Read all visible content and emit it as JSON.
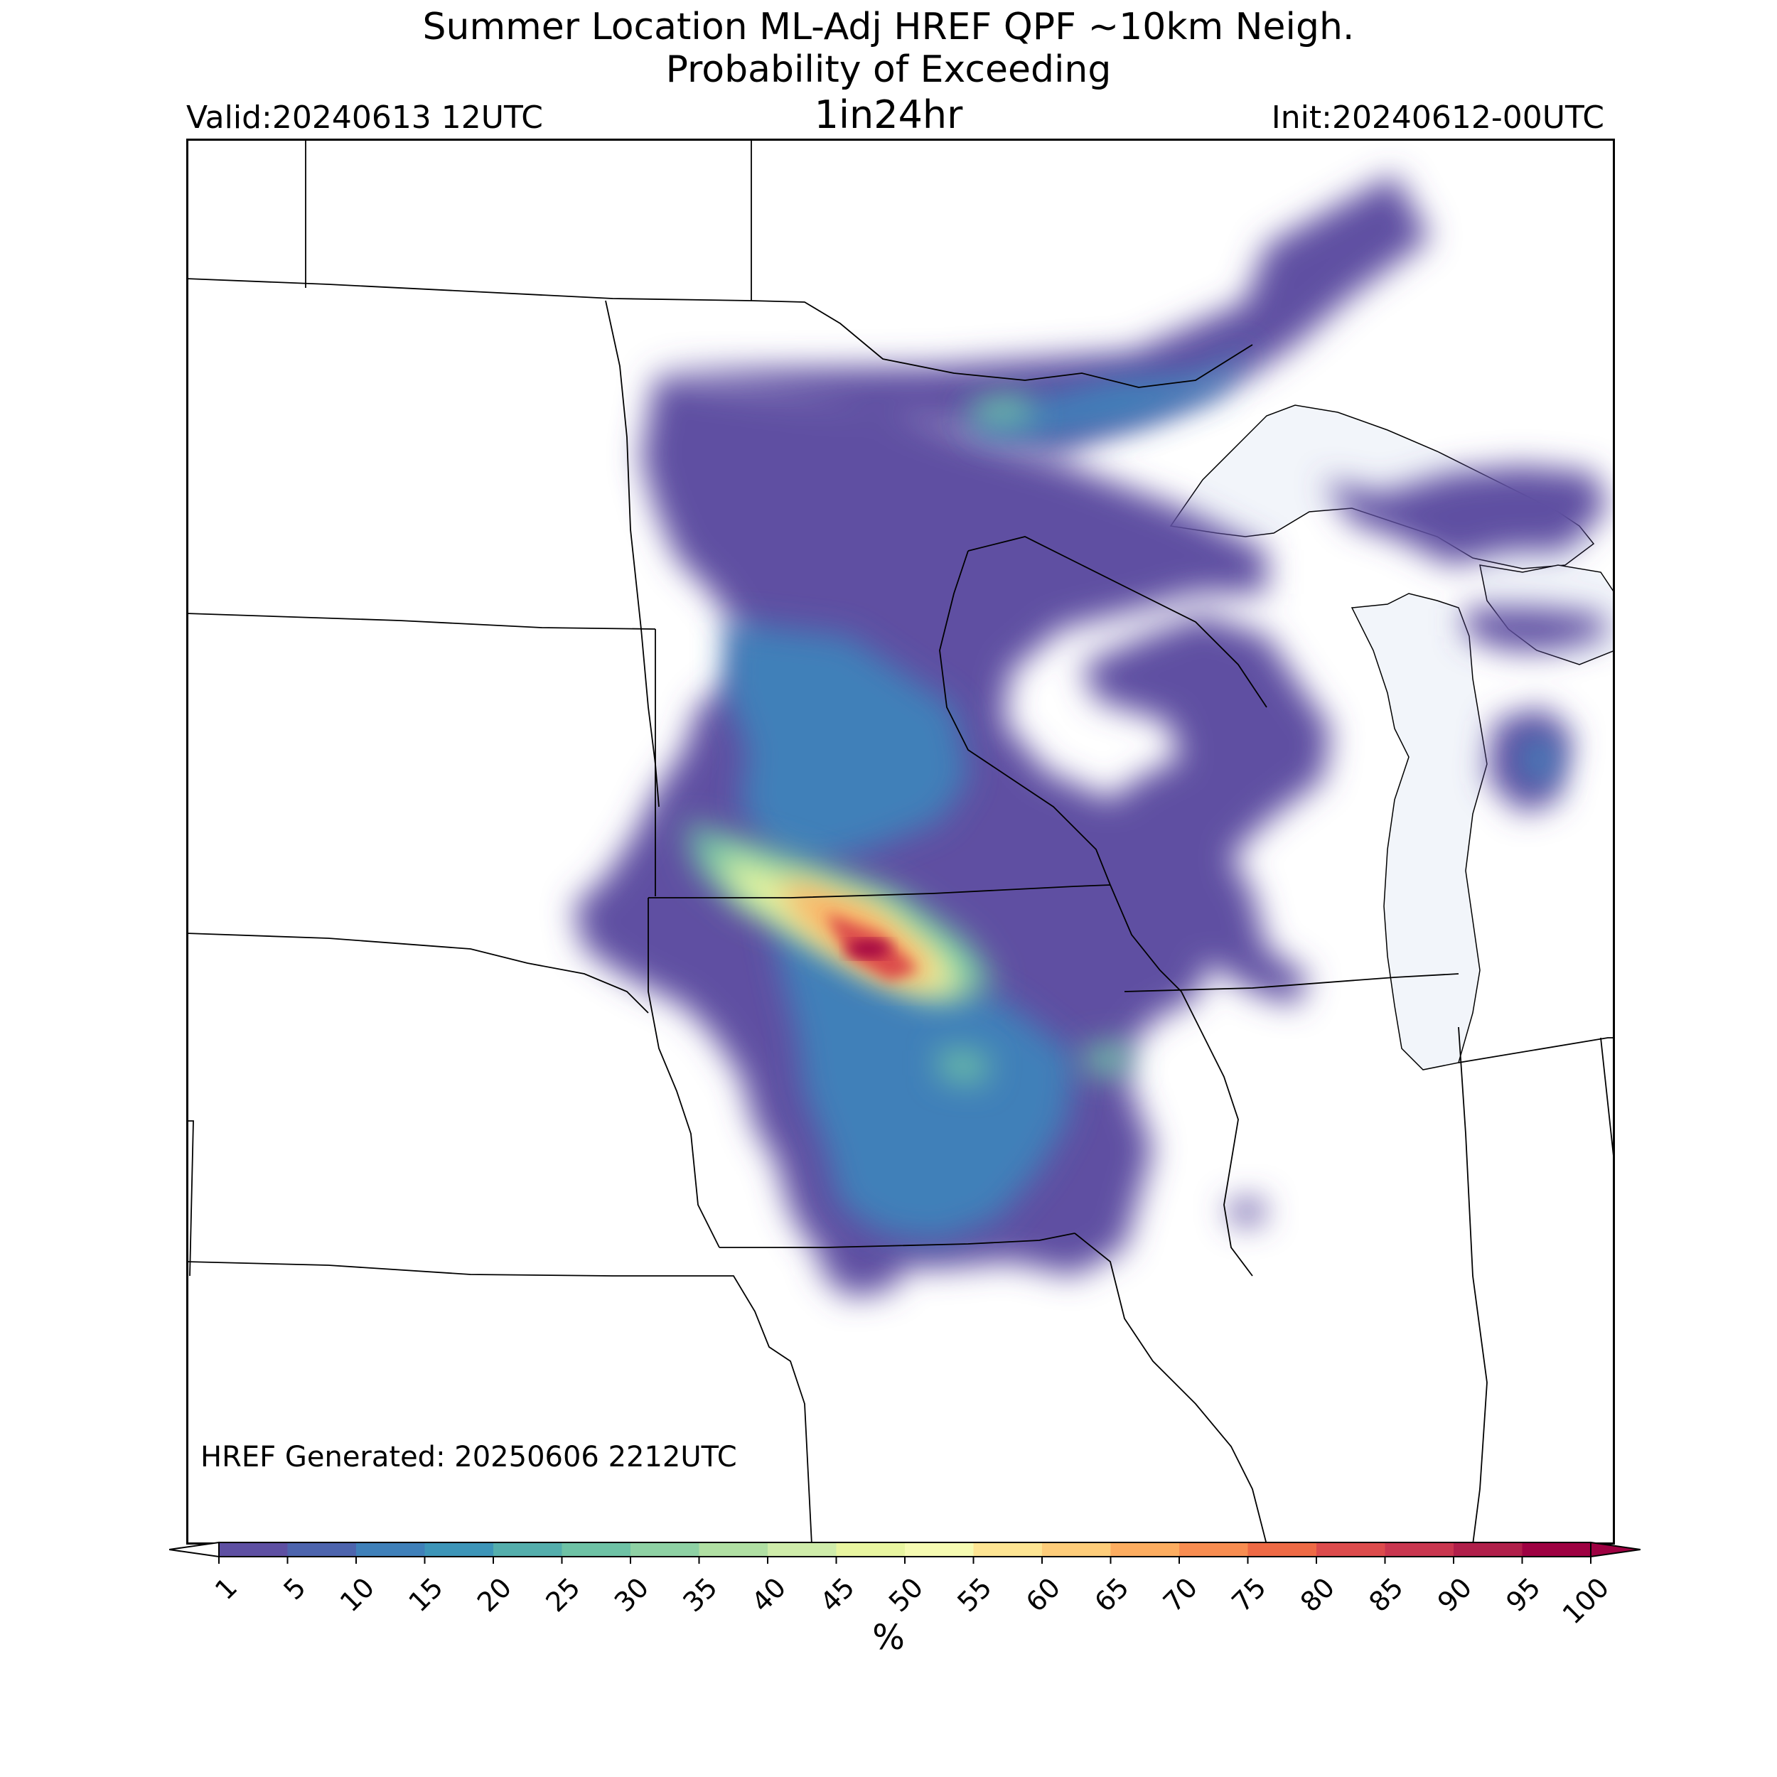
{
  "title": {
    "line1": "Summer Location ML-Adj HREF QPF ~10km Neigh.",
    "line2": "Probability of Exceeding",
    "line3": "1in24hr"
  },
  "valid_label": "Valid:20240613 12UTC",
  "init_label": "Init:20240612-00UTC",
  "generated_label": "HREF Generated: 20250606 2212UTC",
  "colorbar": {
    "ticks": [
      "1",
      "5",
      "10",
      "15",
      "20",
      "25",
      "30",
      "35",
      "40",
      "45",
      "50",
      "55",
      "60",
      "65",
      "70",
      "75",
      "80",
      "85",
      "90",
      "95",
      "100"
    ],
    "colors": [
      "#5e4fa2",
      "#4d64ad",
      "#3f80b9",
      "#3d95b8",
      "#54aeac",
      "#6ec2a5",
      "#8ed1a4",
      "#b0dfa3",
      "#cfecaa",
      "#e8f5a0",
      "#f6fbb2",
      "#fee593",
      "#fecd7a",
      "#fdad60",
      "#f88d51",
      "#ee6a45",
      "#dc4b4c",
      "#c9364f",
      "#b01f4a",
      "#9e0142"
    ],
    "under_color": "#ffffff",
    "over_color": "#9e0142",
    "unit": "%"
  },
  "map": {
    "land_color": "#ffffff",
    "water_color": "#f2f5fa",
    "border_color": "#000000"
  }
}
